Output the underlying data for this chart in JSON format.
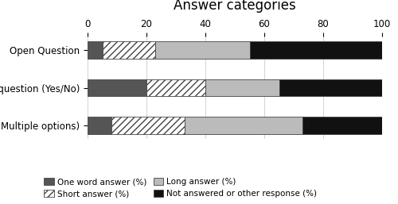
{
  "categories": [
    "Open Question",
    "Closed question (Yes/No)",
    "Closed (Multiple options)"
  ],
  "series": {
    "One word answer (%)": [
      5,
      20,
      8
    ],
    "Short answer (%)": [
      18,
      20,
      25
    ],
    "Long answer (%)": [
      32,
      25,
      40
    ],
    "Not answered or other response (%)": [
      45,
      35,
      27
    ]
  },
  "colors": {
    "One word answer (%)": "#555555",
    "Short answer (%)": "#ffffff",
    "Long answer (%)": "#bbbbbb",
    "Not answered or other response (%)": "#111111"
  },
  "hatch": {
    "One word answer (%)": "",
    "Short answer (%)": "////",
    "Long answer (%)": "",
    "Not answered or other response (%)": ""
  },
  "title": "Answer categories",
  "xlim": [
    0,
    100
  ],
  "xticks": [
    0,
    20,
    40,
    60,
    80,
    100
  ],
  "bar_height": 0.45,
  "title_fontsize": 12,
  "tick_fontsize": 8.5,
  "legend_fontsize": 7.5,
  "background_color": "#ffffff"
}
